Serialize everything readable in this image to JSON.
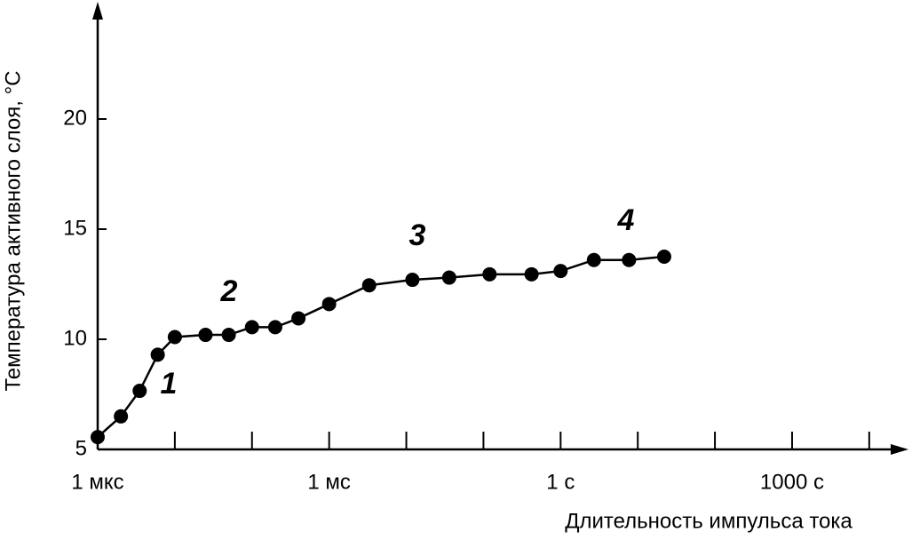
{
  "chart_data": {
    "type": "line",
    "x_label": "Длительность импульса тока",
    "y_label": "Температура активного слоя, °С",
    "x_log": true,
    "color": "#000000",
    "x": [
      1e-06,
      2e-06,
      3.5e-06,
      6e-06,
      1e-05,
      2.5e-05,
      5e-05,
      0.0001,
      0.0002,
      0.0004,
      0.001,
      0.0033,
      0.012,
      0.036,
      0.12,
      0.42,
      1,
      2.7,
      7.7,
      22
    ],
    "values": [
      5.56,
      6.5,
      7.66,
      9.3,
      10.1,
      10.2,
      10.2,
      10.55,
      10.55,
      10.95,
      11.6,
      12.45,
      12.7,
      12.8,
      12.95,
      12.95,
      13.1,
      13.6,
      13.6,
      13.75
    ],
    "xlim": [
      1e-06,
      20000
    ],
    "xticks": [
      {
        "value": 1e-06,
        "label": "1 мкс"
      },
      {
        "value": 0.001,
        "label": "1 мс"
      },
      {
        "value": 1,
        "label": "1 с"
      },
      {
        "value": 1000,
        "label": "1000 с"
      }
    ],
    "x_minor_ticks": [
      1e-05,
      0.0001,
      0.01,
      0.1,
      10,
      100,
      10000
    ],
    "ylim": [
      5,
      25
    ],
    "yticks": [
      5,
      10,
      15,
      20
    ],
    "annotations": [
      "1",
      "2",
      "3",
      "4"
    ]
  }
}
